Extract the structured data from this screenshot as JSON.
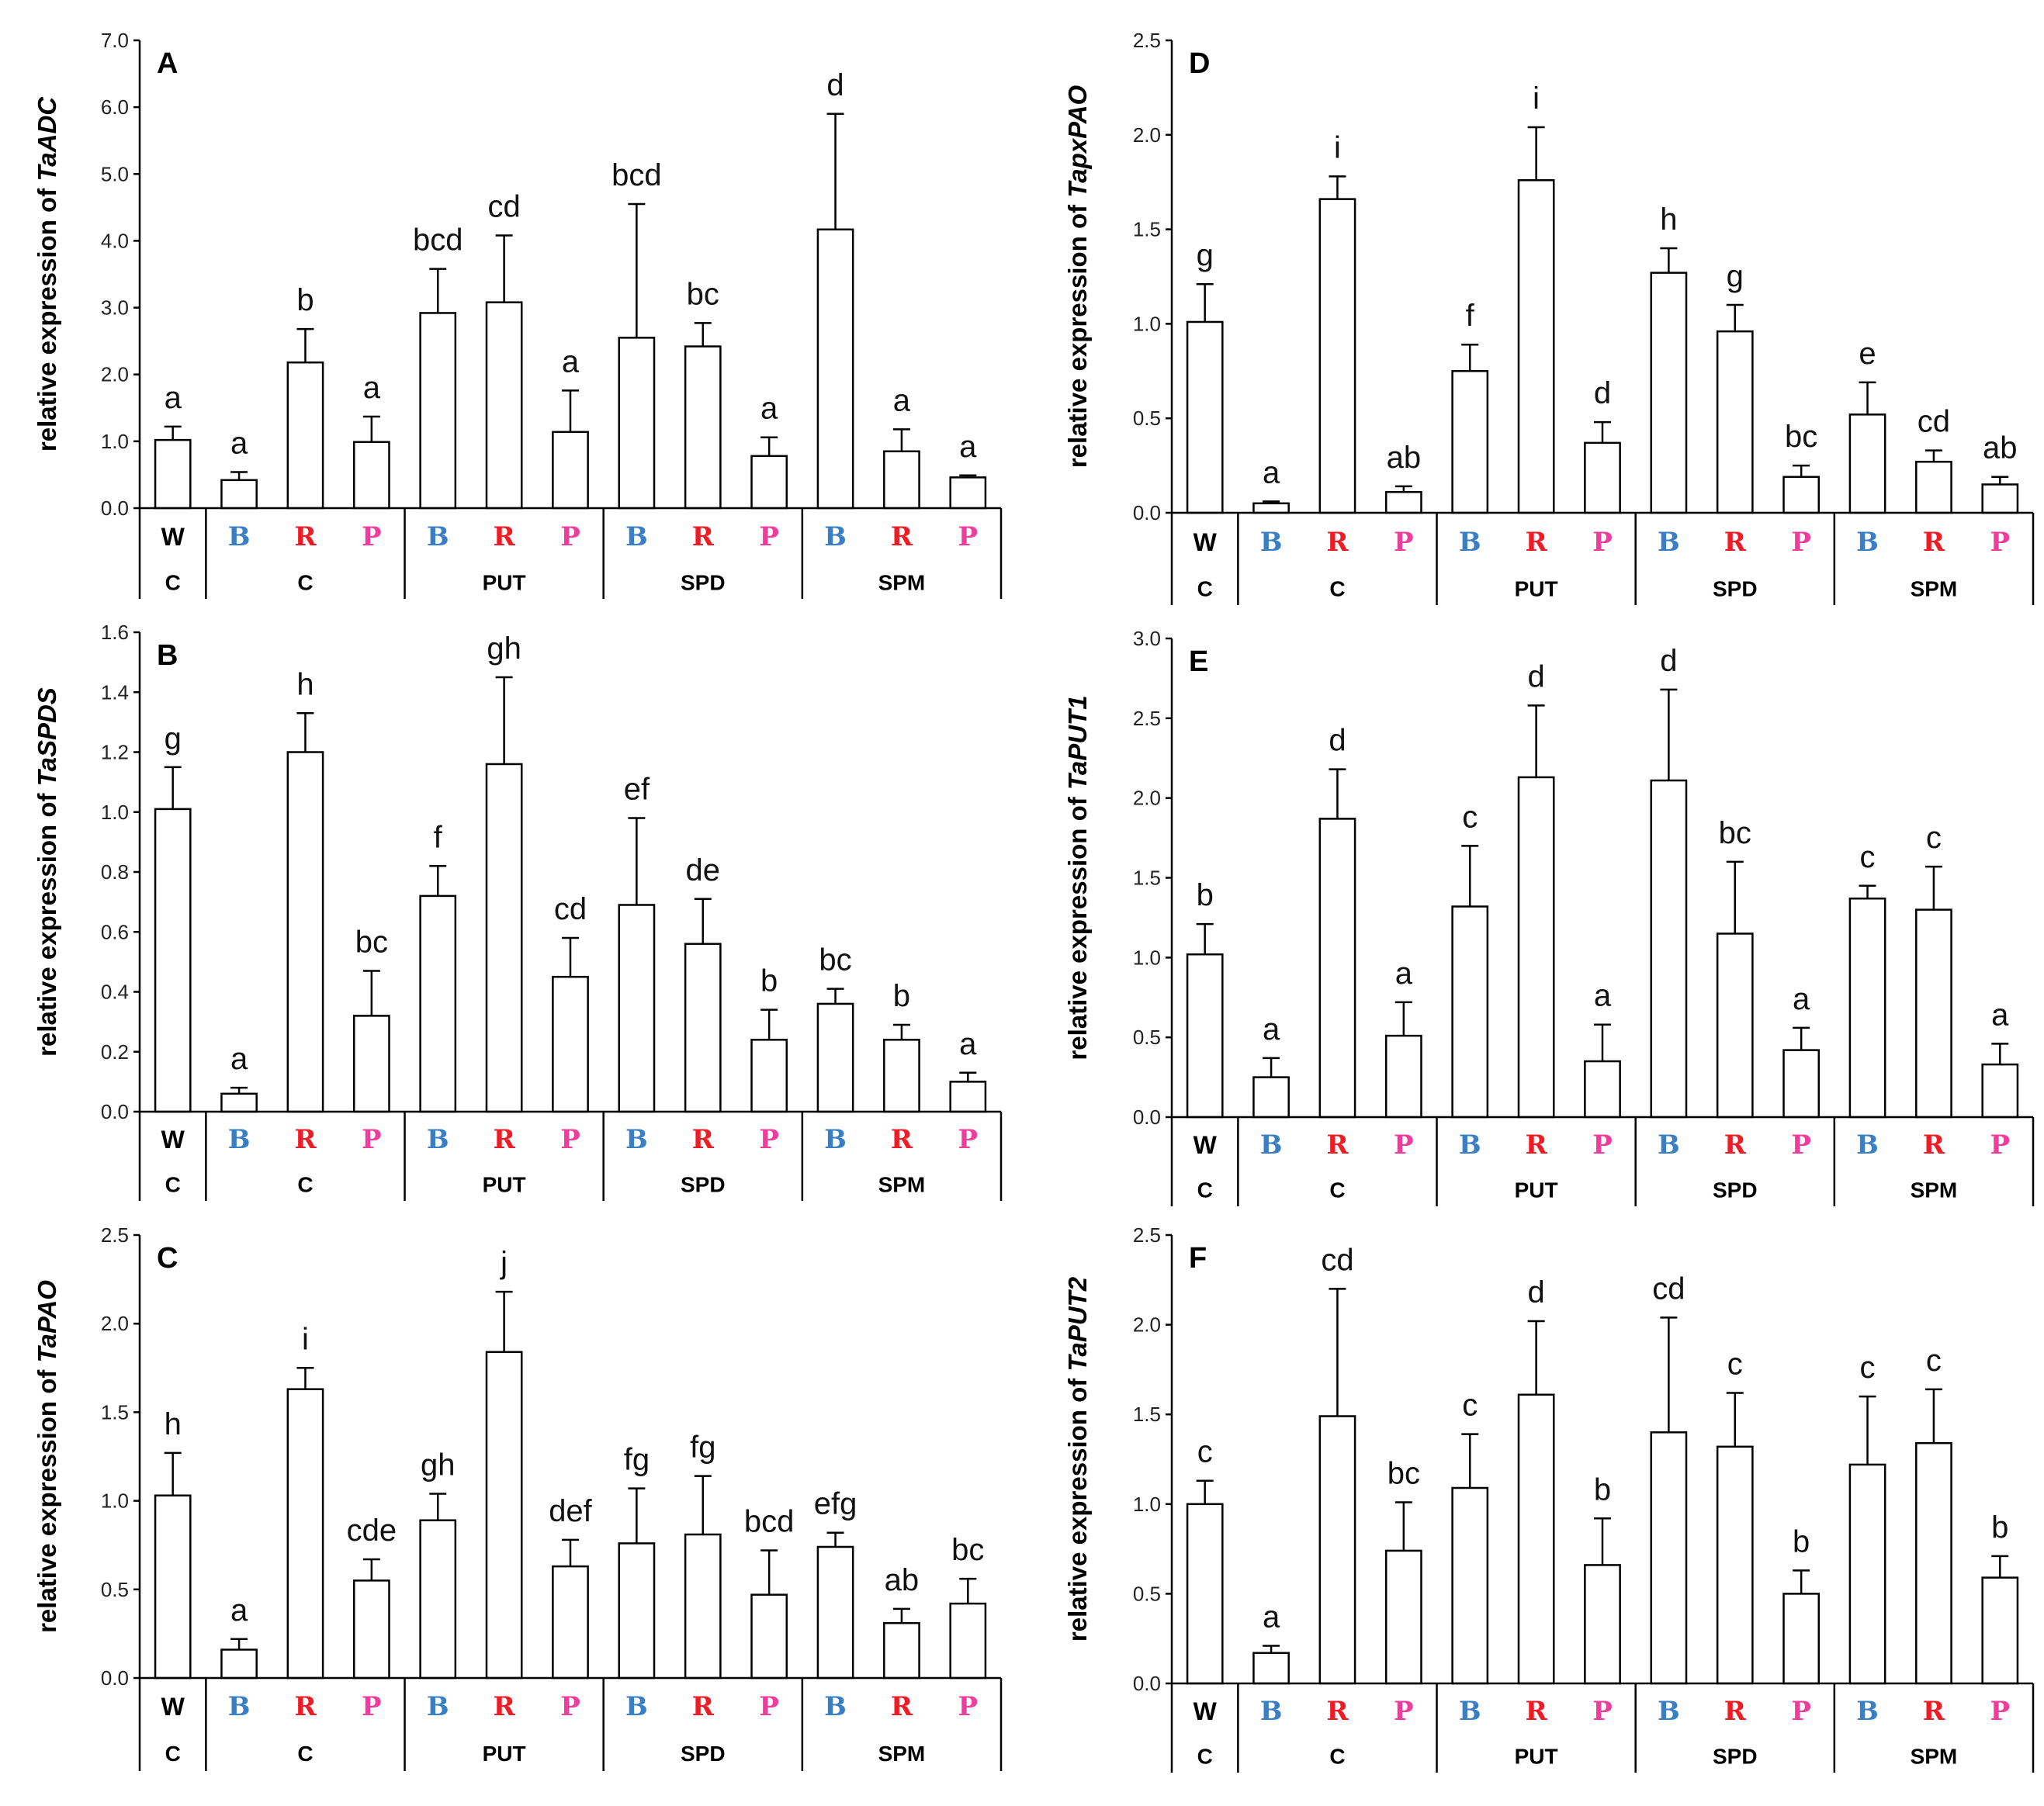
{
  "colors": {
    "B": "#3a7fc4",
    "R": "#ee1c24",
    "P": "#ee3d9c",
    "W": "#000000",
    "C": "#000000"
  },
  "x_categories": [
    "W",
    "B",
    "R",
    "P",
    "B",
    "R",
    "P",
    "B",
    "R",
    "P",
    "B",
    "R",
    "P"
  ],
  "x_groups": [
    "C",
    "C",
    "PUT",
    "SPD",
    "SPM"
  ],
  "chart_data": [
    {
      "panel": "A",
      "type": "bar",
      "ylabel_prefix": "relative expression of ",
      "ylabel_gene": "TaADC",
      "ylim": [
        0,
        7
      ],
      "yticks": [
        "0.0",
        "1.0",
        "2.0",
        "3.0",
        "4.0",
        "5.0",
        "6.0",
        "7.0"
      ],
      "values": [
        1.02,
        0.42,
        2.18,
        0.99,
        2.92,
        3.08,
        1.14,
        2.55,
        2.42,
        0.78,
        4.17,
        0.85,
        0.46
      ],
      "errors": [
        0.2,
        0.12,
        0.5,
        0.38,
        0.66,
        1.0,
        0.62,
        2.0,
        0.35,
        0.28,
        1.73,
        0.33,
        0.03
      ],
      "letters": [
        "a",
        "a",
        "b",
        "a",
        "bcd",
        "cd",
        "a",
        "bcd",
        "bc",
        "a",
        "d",
        "a",
        "a"
      ]
    },
    {
      "panel": "B",
      "type": "bar",
      "ylabel_prefix": "relative expression of ",
      "ylabel_gene": "TaSPDS",
      "ylim": [
        0,
        1.6
      ],
      "yticks": [
        "0.0",
        "0.2",
        "0.4",
        "0.6",
        "0.8",
        "1.0",
        "1.2",
        "1.4",
        "1.6"
      ],
      "values": [
        1.01,
        0.06,
        1.2,
        0.32,
        0.72,
        1.16,
        0.45,
        0.69,
        0.56,
        0.24,
        0.36,
        0.24,
        0.1
      ],
      "errors": [
        0.14,
        0.02,
        0.13,
        0.15,
        0.1,
        0.29,
        0.13,
        0.29,
        0.15,
        0.1,
        0.05,
        0.05,
        0.03
      ],
      "letters": [
        "g",
        "a",
        "h",
        "bc",
        "f",
        "gh",
        "cd",
        "ef",
        "de",
        "b",
        "bc",
        "b",
        "a"
      ]
    },
    {
      "panel": "C",
      "type": "bar",
      "ylabel_prefix": "relative expression of ",
      "ylabel_gene": "TaPAO",
      "ylim": [
        0,
        2.5
      ],
      "yticks": [
        "0.0",
        "0.5",
        "1.0",
        "1.5",
        "2.0",
        "2.5"
      ],
      "values": [
        1.03,
        0.16,
        1.63,
        0.55,
        0.89,
        1.84,
        0.63,
        0.76,
        0.81,
        0.47,
        0.74,
        0.31,
        0.42
      ],
      "errors": [
        0.24,
        0.06,
        0.12,
        0.12,
        0.15,
        0.34,
        0.15,
        0.31,
        0.33,
        0.25,
        0.08,
        0.08,
        0.14
      ],
      "letters": [
        "h",
        "a",
        "i",
        "cde",
        "gh",
        "j",
        "def",
        "fg",
        "fg",
        "bcd",
        "efg",
        "ab",
        "bc"
      ]
    },
    {
      "panel": "D",
      "type": "bar",
      "ylabel_prefix": "relative expression of ",
      "ylabel_gene": "TapxPAO",
      "ylim": [
        0,
        2.5
      ],
      "yticks": [
        "0.0",
        "0.5",
        "1.0",
        "1.5",
        "2.0",
        "2.5"
      ],
      "values": [
        1.01,
        0.05,
        1.66,
        0.11,
        0.75,
        1.76,
        0.37,
        1.27,
        0.96,
        0.19,
        0.52,
        0.27,
        0.15
      ],
      "errors": [
        0.2,
        0.01,
        0.12,
        0.03,
        0.14,
        0.28,
        0.11,
        0.13,
        0.14,
        0.06,
        0.17,
        0.06,
        0.04
      ],
      "letters": [
        "g",
        "a",
        "i",
        "ab",
        "f",
        "i",
        "d",
        "h",
        "g",
        "bc",
        "e",
        "cd",
        "ab"
      ]
    },
    {
      "panel": "E",
      "type": "bar",
      "ylabel_prefix": "relative expression of ",
      "ylabel_gene": "TaPUT1",
      "ylim": [
        0,
        3.0
      ],
      "yticks": [
        "0.0",
        "0.5",
        "1.0",
        "1.5",
        "2.0",
        "2.5",
        "3.0"
      ],
      "values": [
        1.02,
        0.25,
        1.87,
        0.51,
        1.32,
        2.13,
        0.35,
        2.11,
        1.15,
        0.42,
        1.37,
        1.3,
        0.33
      ],
      "errors": [
        0.19,
        0.12,
        0.31,
        0.21,
        0.38,
        0.45,
        0.23,
        0.57,
        0.45,
        0.14,
        0.08,
        0.27,
        0.13
      ],
      "letters": [
        "b",
        "a",
        "d",
        "a",
        "c",
        "d",
        "a",
        "d",
        "bc",
        "a",
        "c",
        "c",
        "a"
      ]
    },
    {
      "panel": "F",
      "type": "bar",
      "ylabel_prefix": "relative expression of ",
      "ylabel_gene": "TaPUT2",
      "ylim": [
        0,
        2.5
      ],
      "yticks": [
        "0.0",
        "0.5",
        "1.0",
        "1.5",
        "2.0",
        "2.5"
      ],
      "values": [
        1.0,
        0.17,
        1.49,
        0.74,
        1.09,
        1.61,
        0.66,
        1.4,
        1.32,
        0.5,
        1.22,
        1.34,
        0.59
      ],
      "errors": [
        0.13,
        0.04,
        0.71,
        0.27,
        0.3,
        0.41,
        0.26,
        0.64,
        0.3,
        0.13,
        0.38,
        0.3,
        0.12
      ],
      "letters": [
        "c",
        "a",
        "cd",
        "bc",
        "c",
        "d",
        "b",
        "cd",
        "c",
        "b",
        "c",
        "c",
        "b"
      ]
    }
  ]
}
